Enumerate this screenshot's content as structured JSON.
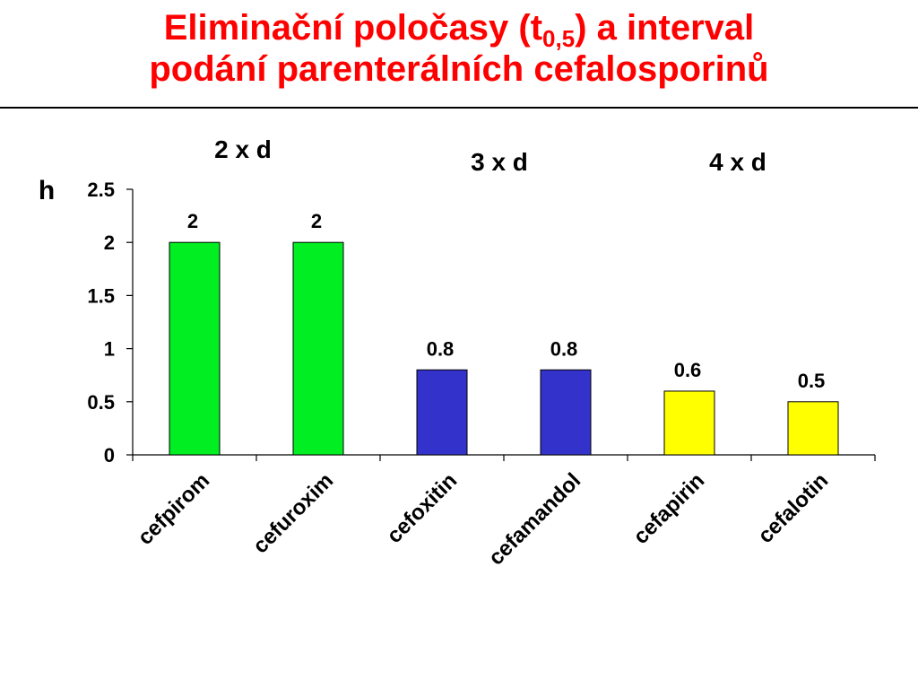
{
  "title": {
    "line1_prefix": "Eliminační poločasy (t",
    "line1_subscript": "0,5",
    "line1_suffix": ") a interval",
    "line2": "podání parenterálních cefalosporinů"
  },
  "chart_data": {
    "type": "bar",
    "ylabel": "h",
    "ylim": [
      0,
      2.5
    ],
    "yticks": [
      "0",
      "0.5",
      "1",
      "1.5",
      "2",
      "2.5"
    ],
    "grid": false,
    "categories": [
      "cefpirom",
      "cefuroxim",
      "cefoxitin",
      "cefamandol",
      "cefapirin",
      "cefalotin"
    ],
    "values": [
      2,
      2,
      0.8,
      0.8,
      0.6,
      0.5
    ],
    "data_labels": [
      "2",
      "2",
      "0.8",
      "0.8",
      "0.6",
      "0.5"
    ],
    "bar_colors": [
      "#00ee22",
      "#00ee22",
      "#3333cc",
      "#3333cc",
      "#ffff00",
      "#ffff00"
    ],
    "annotations": [
      {
        "text": "2 x d",
        "groups": [
          0,
          1
        ]
      },
      {
        "text": "3 x d",
        "groups": [
          2,
          3
        ]
      },
      {
        "text": "4 x d",
        "groups": [
          4,
          5
        ]
      }
    ]
  }
}
